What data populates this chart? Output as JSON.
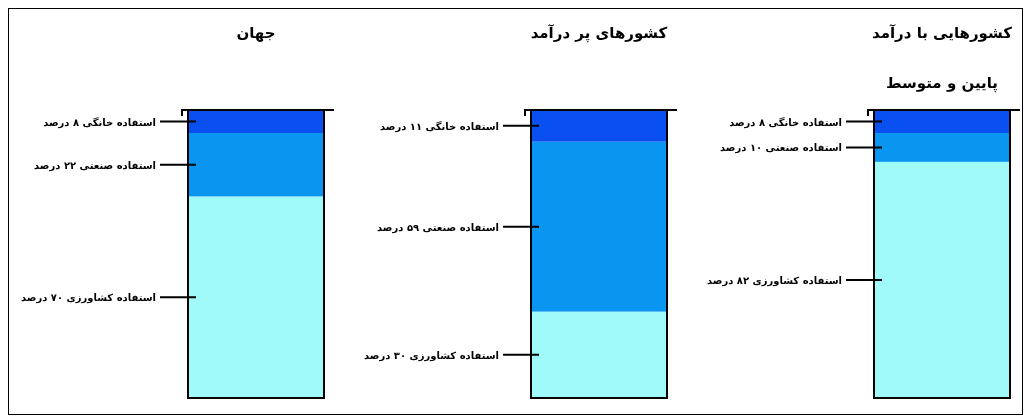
{
  "chart_data": [
    {
      "type": "bar",
      "stacked": true,
      "title": "جهان",
      "categories": [
        null
      ],
      "series": [
        {
          "color": "#a0fafa",
          "values": [
            70
          ],
          "value_labels": [
            "استفاده کشاورزی ۷۰ درصد"
          ]
        },
        {
          "color": "#0a96f0",
          "values": [
            22
          ],
          "value_labels": [
            "استفاده صنعتی ۲۲ درصد"
          ]
        },
        {
          "color": "#0a4ff0",
          "values": [
            8
          ],
          "value_labels": [
            "استفاده خانگی ۸ درصد"
          ]
        }
      ]
    },
    {
      "type": "bar",
      "stacked": true,
      "title": "کشورهای پر درآمد",
      "categories": [
        null
      ],
      "series": [
        {
          "color": "#a0fafa",
          "values": [
            30
          ],
          "value_labels": [
            "استفاده کشاورزی ۳۰ درصد"
          ]
        },
        {
          "color": "#0a96f0",
          "values": [
            59
          ],
          "value_labels": [
            "استفاده صنعتی ۵۹ درصد"
          ]
        },
        {
          "color": "#0a4ff0",
          "values": [
            11
          ],
          "value_labels": [
            "استفاده خانگی ۱۱ درصد"
          ]
        }
      ]
    },
    {
      "type": "bar",
      "stacked": true,
      "title": "کشورهایی با درآمد\nپایین و متوسط",
      "categories": [
        null
      ],
      "series": [
        {
          "color": "#a0fafa",
          "values": [
            82
          ],
          "value_labels": [
            "استفاده کشاورزی ۸۲ درصد"
          ]
        },
        {
          "color": "#0a96f0",
          "values": [
            10
          ],
          "value_labels": [
            "استفاده صنعتی ۱۰ درصد"
          ]
        },
        {
          "color": "#0a4ff0",
          "values": [
            8
          ],
          "value_labels": [
            "استفاده خانگی ۸ درصد"
          ]
        }
      ]
    }
  ]
}
